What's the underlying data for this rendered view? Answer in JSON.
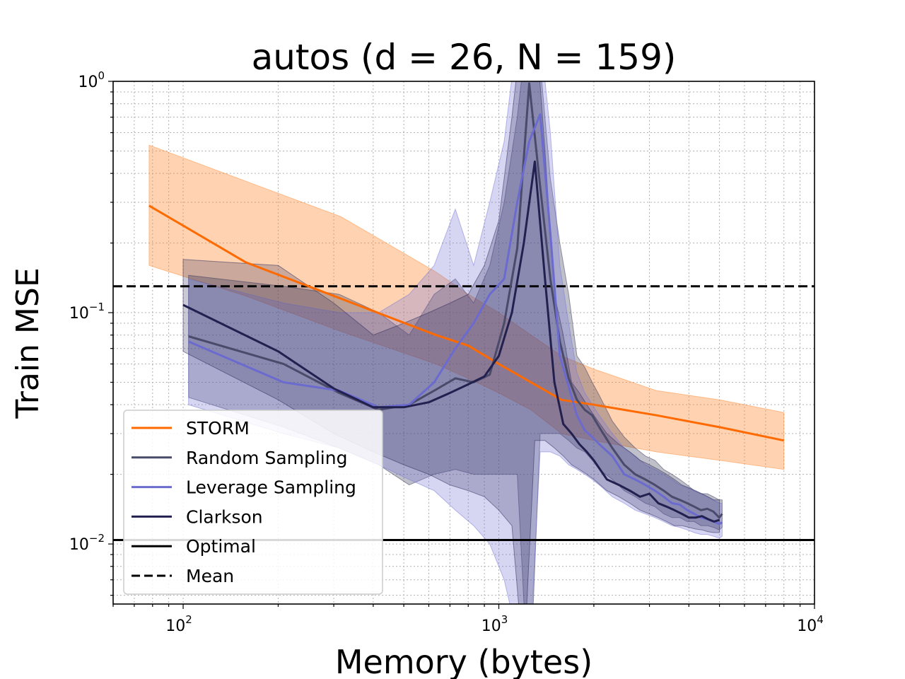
{
  "chart_data": {
    "type": "line",
    "title": "autos (d = 26, N = 159)",
    "xlabel": "Memory (bytes)",
    "ylabel": "Train MSE",
    "xscale": "log",
    "yscale": "log",
    "xlim": [
      60,
      10000
    ],
    "ylim": [
      0.0055,
      1.0
    ],
    "grid": true,
    "legend_position": "lower-left",
    "x_ticks": [
      {
        "value": 100,
        "base": "10",
        "exp": "2"
      },
      {
        "value": 1000,
        "base": "10",
        "exp": "3"
      },
      {
        "value": 10000,
        "base": "10",
        "exp": "4"
      }
    ],
    "y_ticks": [
      {
        "value": 0.01,
        "base": "10",
        "exp": "−2"
      },
      {
        "value": 0.1,
        "base": "10",
        "exp": "−1"
      },
      {
        "value": 1.0,
        "base": "10",
        "exp": "0"
      }
    ],
    "reference_lines": [
      {
        "name": "Optimal",
        "value": 0.0104,
        "style": "solid",
        "color": "#000000"
      },
      {
        "name": "Mean",
        "value": 0.13,
        "style": "dashed",
        "color": "#000000"
      }
    ],
    "series": [
      {
        "name": "STORM",
        "color": "#ff6a00",
        "band_color": "#ff8c35",
        "x": [
          78,
          158,
          316,
          632,
          800,
          1000,
          1264,
          1580,
          2000,
          3160,
          5000,
          8000
        ],
        "y": [
          0.29,
          0.165,
          0.115,
          0.08,
          0.072,
          0.06,
          0.05,
          0.042,
          0.04,
          0.036,
          0.032,
          0.028
        ],
        "y_upper": [
          0.53,
          0.37,
          0.26,
          0.15,
          0.12,
          0.1,
          0.08,
          0.065,
          0.057,
          0.046,
          0.042,
          0.037
        ],
        "y_lower": [
          0.16,
          0.118,
          0.083,
          0.06,
          0.052,
          0.045,
          0.038,
          0.03,
          0.028,
          0.025,
          0.023,
          0.021
        ]
      },
      {
        "name": "Random Sampling",
        "color": "#4a4a6a",
        "band_color": "#3a3a5a",
        "x": [
          104,
          208,
          312,
          416,
          520,
          624,
          728,
          832,
          936,
          1040,
          1144,
          1248,
          1352,
          1456,
          1560,
          1664,
          1768,
          1872,
          1976,
          2080,
          2288,
          2496,
          2704,
          2912,
          3120,
          3328,
          3536,
          3744,
          3952,
          4160,
          4368,
          4576,
          4784,
          4992,
          5100
        ],
        "y": [
          0.079,
          0.06,
          0.045,
          0.038,
          0.04,
          0.046,
          0.052,
          0.05,
          0.054,
          0.09,
          0.19,
          0.98,
          0.35,
          0.14,
          0.075,
          0.052,
          0.042,
          0.038,
          0.036,
          0.032,
          0.026,
          0.022,
          0.02,
          0.019,
          0.018,
          0.017,
          0.016,
          0.0155,
          0.015,
          0.0145,
          0.014,
          0.0142,
          0.0138,
          0.013,
          0.0135
        ],
        "y_upper": [
          0.145,
          0.13,
          0.12,
          0.1,
          0.08,
          0.12,
          0.14,
          0.11,
          0.16,
          0.3,
          0.7,
          2.0,
          1.2,
          0.38,
          0.2,
          0.12,
          0.065,
          0.058,
          0.05,
          0.044,
          0.034,
          0.029,
          0.026,
          0.024,
          0.023,
          0.021,
          0.02,
          0.019,
          0.018,
          0.017,
          0.0165,
          0.0165,
          0.016,
          0.0155,
          0.0155
        ],
        "y_lower": [
          0.043,
          0.032,
          0.026,
          0.022,
          0.018,
          0.02,
          0.021,
          0.02,
          0.02,
          0.02,
          0.02,
          0.002,
          0.03,
          0.03,
          0.03,
          0.028,
          0.026,
          0.025,
          0.023,
          0.021,
          0.019,
          0.017,
          0.016,
          0.015,
          0.0145,
          0.0135,
          0.013,
          0.013,
          0.0125,
          0.0125,
          0.012,
          0.012,
          0.0118,
          0.0115,
          0.0118
        ]
      },
      {
        "name": "Leverage Sampling",
        "color": "#6b6bcf",
        "band_color": "#7878d8",
        "x": [
          104,
          208,
          312,
          416,
          520,
          624,
          728,
          832,
          936,
          1040,
          1144,
          1248,
          1352,
          1456,
          1560,
          1664,
          1768,
          1872,
          1976,
          2080,
          2288,
          2496,
          2704,
          2912,
          3120,
          3328,
          3536,
          3744,
          3952,
          4160,
          4368,
          4576,
          4784,
          4992,
          5100
        ],
        "y": [
          0.075,
          0.05,
          0.046,
          0.039,
          0.04,
          0.05,
          0.07,
          0.09,
          0.12,
          0.14,
          0.3,
          0.55,
          0.72,
          0.22,
          0.065,
          0.048,
          0.036,
          0.031,
          0.029,
          0.027,
          0.024,
          0.02,
          0.019,
          0.018,
          0.017,
          0.016,
          0.015,
          0.0148,
          0.014,
          0.0135,
          0.013,
          0.0128,
          0.0125,
          0.0122,
          0.0124
        ],
        "y_upper": [
          0.14,
          0.11,
          0.1,
          0.1,
          0.12,
          0.16,
          0.28,
          0.16,
          0.3,
          0.55,
          1.6,
          2.0,
          1.6,
          0.6,
          0.16,
          0.09,
          0.055,
          0.045,
          0.04,
          0.036,
          0.03,
          0.026,
          0.024,
          0.022,
          0.021,
          0.02,
          0.019,
          0.018,
          0.0175,
          0.017,
          0.0165,
          0.016,
          0.0155,
          0.015,
          0.015
        ],
        "y_lower": [
          0.04,
          0.03,
          0.026,
          0.022,
          0.019,
          0.017,
          0.014,
          0.012,
          0.01,
          0.007,
          0.004,
          0.003,
          0.025,
          0.025,
          0.024,
          0.022,
          0.021,
          0.02,
          0.019,
          0.018,
          0.016,
          0.015,
          0.014,
          0.0135,
          0.013,
          0.0125,
          0.012,
          0.0118,
          0.0115,
          0.0112,
          0.011,
          0.011,
          0.0108,
          0.0106,
          0.0108
        ]
      },
      {
        "name": "Clarkson",
        "color": "#22204f",
        "band_color": "#2a2858",
        "x": [
          100,
          200,
          300,
          400,
          500,
          600,
          700,
          800,
          900,
          1000,
          1100,
          1200,
          1300,
          1400,
          1500,
          1600,
          1700,
          1800,
          1900,
          2000,
          2200,
          2400,
          2600,
          2800,
          3000,
          3200,
          3400,
          3600,
          3800,
          4000,
          4200,
          4400,
          4600,
          4800,
          5000
        ],
        "y": [
          0.108,
          0.068,
          0.047,
          0.039,
          0.039,
          0.041,
          0.045,
          0.049,
          0.053,
          0.065,
          0.1,
          0.2,
          0.45,
          0.14,
          0.05,
          0.033,
          0.03,
          0.027,
          0.025,
          0.023,
          0.019,
          0.018,
          0.017,
          0.016,
          0.0165,
          0.015,
          0.0145,
          0.014,
          0.0135,
          0.013,
          0.013,
          0.0132,
          0.0128,
          0.0125,
          0.0127
        ],
        "y_upper": [
          0.17,
          0.16,
          0.11,
          0.08,
          0.09,
          0.1,
          0.11,
          0.12,
          0.16,
          0.25,
          0.7,
          2.0,
          2.0,
          0.5,
          0.12,
          0.08,
          0.05,
          0.045,
          0.04,
          0.036,
          0.03,
          0.027,
          0.025,
          0.023,
          0.022,
          0.021,
          0.02,
          0.019,
          0.018,
          0.0175,
          0.017,
          0.0165,
          0.016,
          0.0155,
          0.0155
        ],
        "y_lower": [
          0.068,
          0.042,
          0.03,
          0.025,
          0.022,
          0.02,
          0.018,
          0.017,
          0.016,
          0.014,
          0.012,
          0.003,
          0.028,
          0.028,
          0.026,
          0.024,
          0.022,
          0.021,
          0.02,
          0.019,
          0.017,
          0.016,
          0.015,
          0.014,
          0.0135,
          0.013,
          0.0125,
          0.012,
          0.012,
          0.0118,
          0.0116,
          0.0115,
          0.0113,
          0.0112,
          0.0112
        ]
      }
    ],
    "legend": [
      {
        "label": "STORM",
        "color": "#ff6a00",
        "style": "solid"
      },
      {
        "label": "Random Sampling",
        "color": "#4a4a6a",
        "style": "solid"
      },
      {
        "label": "Leverage Sampling",
        "color": "#6b6bcf",
        "style": "solid"
      },
      {
        "label": "Clarkson",
        "color": "#22204f",
        "style": "solid"
      },
      {
        "label": "Optimal",
        "color": "#000000",
        "style": "solid"
      },
      {
        "label": "Mean",
        "color": "#000000",
        "style": "dashed"
      }
    ]
  }
}
